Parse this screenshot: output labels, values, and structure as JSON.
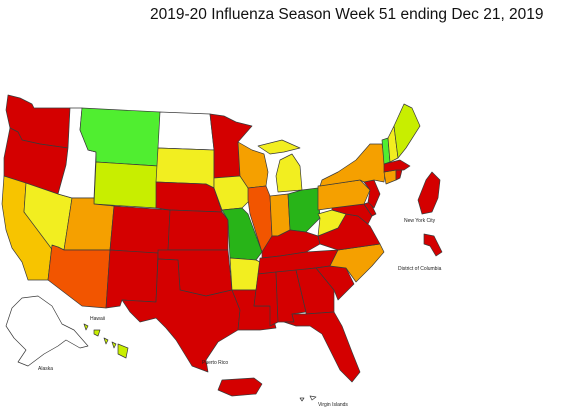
{
  "title": "2019-20 Influenza Season Week 51 ending Dec 21, 2019",
  "colors": {
    "red": "#d40000",
    "orange_red": "#f25500",
    "orange": "#f5a000",
    "yellow_orange": "#f7c400",
    "yellow": "#f2ee20",
    "yellow_green": "#c8ee00",
    "green": "#50ee30",
    "dark_green": "#28b418",
    "white": "#ffffff"
  },
  "states": [
    {
      "code": "WA",
      "level": "red"
    },
    {
      "code": "OR",
      "level": "red"
    },
    {
      "code": "CA",
      "level": "yellow_orange"
    },
    {
      "code": "NV",
      "level": "yellow"
    },
    {
      "code": "ID",
      "level": "white"
    },
    {
      "code": "MT",
      "level": "green"
    },
    {
      "code": "WY",
      "level": "yellow_green"
    },
    {
      "code": "UT",
      "level": "orange"
    },
    {
      "code": "AZ",
      "level": "orange_red"
    },
    {
      "code": "CO",
      "level": "red"
    },
    {
      "code": "NM",
      "level": "red"
    },
    {
      "code": "ND",
      "level": "white"
    },
    {
      "code": "SD",
      "level": "yellow"
    },
    {
      "code": "NE",
      "level": "red"
    },
    {
      "code": "KS",
      "level": "red"
    },
    {
      "code": "OK",
      "level": "red"
    },
    {
      "code": "TX",
      "level": "red"
    },
    {
      "code": "MN",
      "level": "red"
    },
    {
      "code": "IA",
      "level": "yellow"
    },
    {
      "code": "MO",
      "level": "dark_green"
    },
    {
      "code": "AR",
      "level": "yellow"
    },
    {
      "code": "LA",
      "level": "red"
    },
    {
      "code": "WI",
      "level": "orange"
    },
    {
      "code": "IL",
      "level": "orange_red"
    },
    {
      "code": "MI",
      "level": "yellow"
    },
    {
      "code": "IN",
      "level": "orange"
    },
    {
      "code": "OH",
      "level": "dark_green"
    },
    {
      "code": "KY",
      "level": "red"
    },
    {
      "code": "TN",
      "level": "red"
    },
    {
      "code": "MS",
      "level": "red"
    },
    {
      "code": "AL",
      "level": "red"
    },
    {
      "code": "GA",
      "level": "red"
    },
    {
      "code": "FL",
      "level": "red"
    },
    {
      "code": "SC",
      "level": "red"
    },
    {
      "code": "NC",
      "level": "orange"
    },
    {
      "code": "VA",
      "level": "red"
    },
    {
      "code": "WV",
      "level": "yellow"
    },
    {
      "code": "MD",
      "level": "red"
    },
    {
      "code": "DE",
      "level": "red"
    },
    {
      "code": "PA",
      "level": "orange"
    },
    {
      "code": "NJ",
      "level": "red"
    },
    {
      "code": "NY",
      "level": "orange"
    },
    {
      "code": "CT",
      "level": "orange"
    },
    {
      "code": "RI",
      "level": "red"
    },
    {
      "code": "MA",
      "level": "red"
    },
    {
      "code": "VT",
      "level": "green"
    },
    {
      "code": "NH",
      "level": "yellow"
    },
    {
      "code": "ME",
      "level": "yellow_green"
    },
    {
      "code": "AK",
      "level": "white"
    },
    {
      "code": "HI",
      "level": "yellow_green"
    },
    {
      "code": "NYC",
      "level": "red"
    },
    {
      "code": "DC",
      "level": "red"
    },
    {
      "code": "PR",
      "level": "red"
    },
    {
      "code": "VI",
      "level": "white"
    }
  ],
  "labels": {
    "new_york_city": "New York City",
    "district_of_columbia": "District of Columbia",
    "hawaii": "Hawaii",
    "alaska": "Alaska",
    "puerto_rico": "Puerto Rico",
    "virgin_islands": "Virgin Islands"
  }
}
